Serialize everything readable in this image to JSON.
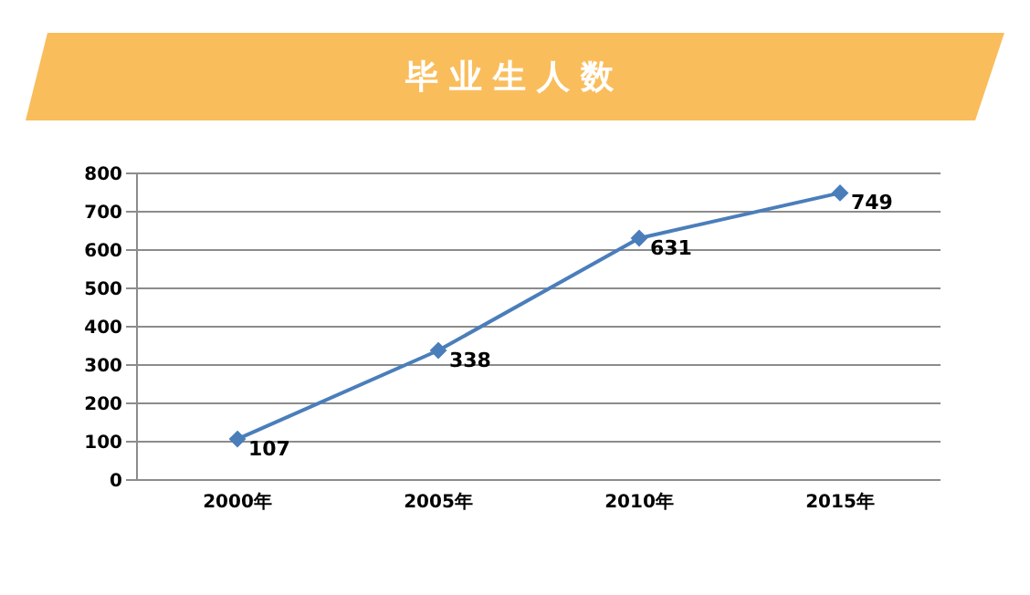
{
  "chart_data": {
    "type": "line",
    "title": "毕业生人数",
    "categories": [
      "2000年",
      "2005年",
      "2010年",
      "2015年"
    ],
    "series": [
      {
        "color": "#4a7ebb",
        "values": [
          107,
          338,
          631,
          749
        ]
      }
    ],
    "ylim": [
      0,
      800
    ],
    "yticks": [
      0,
      100,
      200,
      300,
      400,
      500,
      600,
      700,
      800
    ],
    "grid": "y",
    "marker": "diamond",
    "data_labels": true
  }
}
